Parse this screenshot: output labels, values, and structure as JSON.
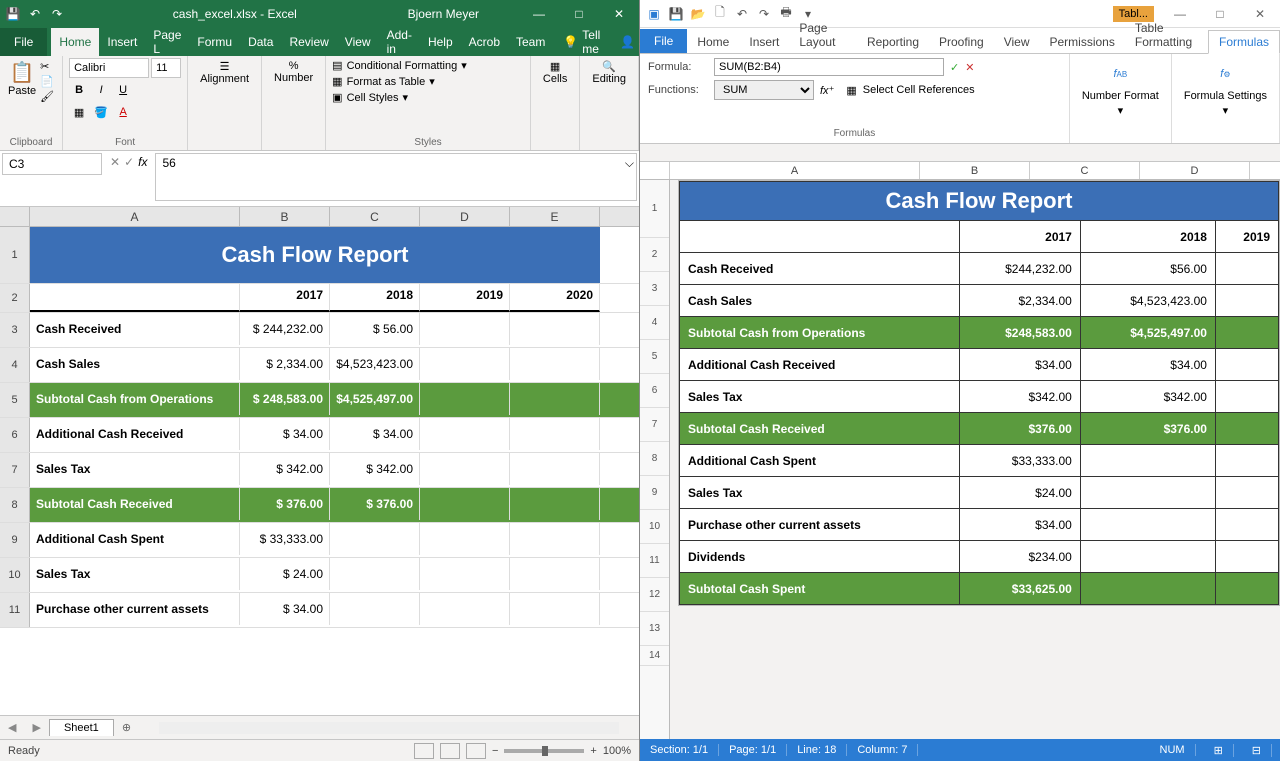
{
  "excel": {
    "title": "cash_excel.xlsx - Excel",
    "user": "Bjoern Meyer",
    "tabs": [
      "File",
      "Home",
      "Insert",
      "Page L",
      "Formu",
      "Data",
      "Review",
      "View",
      "Add-in",
      "Help",
      "Acrob",
      "Team"
    ],
    "active_tab": "Home",
    "tellme": "Tell me",
    "share": "Share",
    "ribbon": {
      "clipboard_label": "Clipboard",
      "paste": "Paste",
      "font_label": "Font",
      "font_name": "Calibri",
      "font_size": "11",
      "alignment_label": "Alignment",
      "number_label": "Number",
      "percent": "%",
      "cond_fmt": "Conditional Formatting",
      "fmt_table": "Format as Table",
      "cell_styles": "Cell Styles",
      "styles_label": "Styles",
      "cells_label": "Cells",
      "editing_label": "Editing"
    },
    "namebox": "C3",
    "formula_value": "56",
    "columns": [
      "A",
      "B",
      "C",
      "D",
      "E"
    ],
    "report_title": "Cash Flow Report",
    "years": [
      "2017",
      "2018",
      "2019",
      "2020"
    ],
    "rows": [
      {
        "n": 3,
        "label": "Cash Received",
        "vals": [
          "$  244,232.00",
          "$        56.00",
          "",
          ""
        ]
      },
      {
        "n": 4,
        "label": "Cash Sales",
        "vals": [
          "$      2,334.00",
          "$4,523,423.00",
          "",
          ""
        ]
      },
      {
        "n": 5,
        "label": "Subtotal Cash from Operations",
        "vals": [
          "$  248,583.00",
          "$4,525,497.00",
          "",
          ""
        ],
        "subtotal": true
      },
      {
        "n": 6,
        "label": "Additional Cash Received",
        "vals": [
          "$        34.00",
          "$        34.00",
          "",
          ""
        ]
      },
      {
        "n": 7,
        "label": "Sales Tax",
        "vals": [
          "$      342.00",
          "$      342.00",
          "",
          ""
        ]
      },
      {
        "n": 8,
        "label": "Subtotal Cash Received",
        "vals": [
          "$      376.00",
          "$      376.00",
          "",
          ""
        ],
        "subtotal": true
      },
      {
        "n": 9,
        "label": "Additional Cash Spent",
        "vals": [
          "$   33,333.00",
          "",
          "",
          ""
        ]
      },
      {
        "n": 10,
        "label": "Sales Tax",
        "vals": [
          "$        24.00",
          "",
          "",
          ""
        ]
      },
      {
        "n": 11,
        "label": "Purchase other current assets",
        "vals": [
          "$        34.00",
          "",
          "",
          ""
        ]
      }
    ],
    "sheet": "Sheet1",
    "status_ready": "Ready",
    "zoom": "100%"
  },
  "tx": {
    "badge": "Tabl...",
    "tabs": [
      "File",
      "Home",
      "Insert",
      "Page Layout",
      "Reporting",
      "Proofing",
      "View",
      "Permissions",
      "Table Formatting",
      "Formulas"
    ],
    "active_tab": "Formulas",
    "formula_label": "Formula:",
    "formula_value": "SUM(B2:B4)",
    "functions_label": "Functions:",
    "functions_value": "SUM",
    "select_refs": "Select Cell References",
    "formulas_group": "Formulas",
    "number_format": "Number Format",
    "formula_settings": "Formula Settings",
    "columns": [
      "A",
      "B",
      "C",
      "D"
    ],
    "report_title": "Cash Flow Report",
    "years": [
      "2017",
      "2018",
      "2019"
    ],
    "rows": [
      {
        "n": 3,
        "label": "Cash Received",
        "vals": [
          "$244,232.00",
          "$56.00",
          ""
        ]
      },
      {
        "n": 4,
        "label": "Cash Sales",
        "vals": [
          "$2,334.00",
          "$4,523,423.00",
          ""
        ]
      },
      {
        "n": 5,
        "label": "Subtotal Cash from Operations",
        "vals": [
          "$248,583.00",
          "$4,525,497.00",
          ""
        ],
        "subtotal": true
      },
      {
        "n": 6,
        "label": "Additional Cash Received",
        "vals": [
          "$34.00",
          "$34.00",
          ""
        ]
      },
      {
        "n": 7,
        "label": "Sales Tax",
        "vals": [
          "$342.00",
          "$342.00",
          ""
        ]
      },
      {
        "n": 8,
        "label": "Subtotal Cash Received",
        "vals": [
          "$376.00",
          "$376.00",
          ""
        ],
        "subtotal": true
      },
      {
        "n": 9,
        "label": "Additional Cash Spent",
        "vals": [
          "$33,333.00",
          "",
          ""
        ]
      },
      {
        "n": 10,
        "label": "Sales Tax",
        "vals": [
          "$24.00",
          "",
          ""
        ]
      },
      {
        "n": 11,
        "label": "Purchase other current assets",
        "vals": [
          "$34.00",
          "",
          ""
        ]
      },
      {
        "n": 12,
        "label": "Dividends",
        "vals": [
          "$234.00",
          "",
          ""
        ]
      },
      {
        "n": 13,
        "label": "Subtotal Cash Spent",
        "vals": [
          "$33,625.00",
          "",
          ""
        ],
        "subtotal": true
      }
    ],
    "status": {
      "section": "Section: 1/1",
      "page": "Page: 1/1",
      "line": "Line: 18",
      "column": "Column: 7",
      "num": "NUM"
    }
  }
}
